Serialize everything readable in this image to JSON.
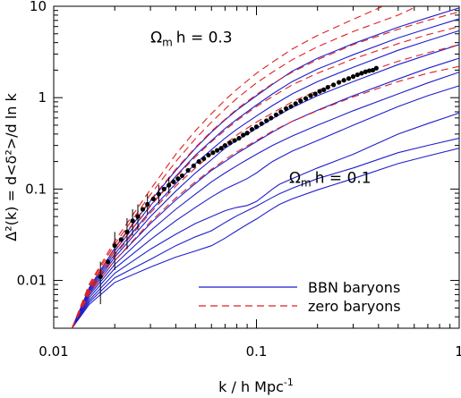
{
  "chart_data": {
    "type": "line",
    "xlabel": "k / h Mpc",
    "xlabel_sup": "-1",
    "ylabel": "Δ²(k) = d<δ²>/d ln k",
    "xscale": "log",
    "yscale": "log",
    "xlim": [
      0.01,
      1
    ],
    "ylim": [
      0.003,
      10
    ],
    "x_ticks": [
      {
        "value": 0.01,
        "label": "0.01"
      },
      {
        "value": 0.1,
        "label": "0.1"
      },
      {
        "value": 1,
        "label": "1"
      }
    ],
    "y_ticks": [
      {
        "value": 0.01,
        "label": "0.01"
      },
      {
        "value": 0.1,
        "label": "0.1"
      },
      {
        "value": 1,
        "label": "1"
      },
      {
        "value": 10,
        "label": "10"
      }
    ],
    "annotations": [
      {
        "text": "Ω",
        "sub": "m",
        "rest": "h = 0.3",
        "x": 0.03,
        "y": 4.0
      },
      {
        "text": "Ω",
        "sub": "m",
        "rest": "h = 0.1",
        "x": 0.145,
        "y": 0.117
      }
    ],
    "legend": {
      "placement": "bottom-right",
      "entries": [
        {
          "label": "BBN baryons",
          "style": "solid",
          "color": "#1f1fcc"
        },
        {
          "label": "zero baryons",
          "style": "dashed",
          "color": "#e02020"
        }
      ]
    },
    "series": [
      {
        "style": "solid",
        "color": "#1f1fcc",
        "x": [
          0.0123,
          0.015,
          0.02,
          0.03,
          0.04,
          0.05,
          0.06,
          0.07,
          0.08,
          0.09,
          0.1,
          0.11,
          0.12,
          0.13,
          0.15,
          0.2,
          0.3,
          0.5,
          0.7,
          1.0
        ],
        "y": [
          0.003,
          0.0055,
          0.0095,
          0.014,
          0.018,
          0.021,
          0.024,
          0.029,
          0.035,
          0.041,
          0.047,
          0.054,
          0.061,
          0.068,
          0.078,
          0.098,
          0.13,
          0.19,
          0.23,
          0.28
        ]
      },
      {
        "style": "solid",
        "color": "#1f1fcc",
        "x": [
          0.0123,
          0.015,
          0.02,
          0.03,
          0.04,
          0.05,
          0.06,
          0.07,
          0.08,
          0.09,
          0.1,
          0.11,
          0.12,
          0.13,
          0.15,
          0.2,
          0.3,
          0.5,
          0.7,
          1.0
        ],
        "y": [
          0.003,
          0.0058,
          0.0107,
          0.017,
          0.024,
          0.03,
          0.035,
          0.043,
          0.051,
          0.058,
          0.065,
          0.073,
          0.081,
          0.089,
          0.102,
          0.13,
          0.17,
          0.25,
          0.3,
          0.36
        ]
      },
      {
        "style": "solid",
        "color": "#1f1fcc",
        "x": [
          0.0123,
          0.015,
          0.02,
          0.03,
          0.04,
          0.05,
          0.06,
          0.07,
          0.08,
          0.09,
          0.1,
          0.11,
          0.12,
          0.13,
          0.15,
          0.2,
          0.3,
          0.5,
          0.7,
          1.0
        ],
        "y": [
          0.003,
          0.0061,
          0.012,
          0.022,
          0.032,
          0.042,
          0.05,
          0.058,
          0.063,
          0.066,
          0.073,
          0.086,
          0.1,
          0.113,
          0.13,
          0.17,
          0.24,
          0.4,
          0.52,
          0.68
        ]
      },
      {
        "style": "solid",
        "color": "#1f1fcc",
        "x": [
          0.0123,
          0.015,
          0.02,
          0.03,
          0.04,
          0.05,
          0.06,
          0.07,
          0.08,
          0.09,
          0.1,
          0.11,
          0.12,
          0.13,
          0.15,
          0.2,
          0.3,
          0.5,
          0.7,
          1.0
        ],
        "y": [
          0.003,
          0.0065,
          0.0135,
          0.028,
          0.045,
          0.063,
          0.082,
          0.1,
          0.115,
          0.13,
          0.15,
          0.175,
          0.2,
          0.22,
          0.26,
          0.34,
          0.5,
          0.8,
          1.05,
          1.35
        ]
      },
      {
        "style": "solid",
        "color": "#1f1fcc",
        "x": [
          0.0123,
          0.015,
          0.02,
          0.03,
          0.04,
          0.05,
          0.06,
          0.07,
          0.08,
          0.09,
          0.1,
          0.12,
          0.15,
          0.2,
          0.3,
          0.5,
          0.7,
          1.0
        ],
        "y": [
          0.003,
          0.0069,
          0.015,
          0.035,
          0.06,
          0.088,
          0.12,
          0.15,
          0.18,
          0.21,
          0.24,
          0.3,
          0.38,
          0.5,
          0.72,
          1.1,
          1.45,
          1.9
        ]
      },
      {
        "style": "solid",
        "color": "#1f1fcc",
        "x": [
          0.0123,
          0.015,
          0.02,
          0.03,
          0.04,
          0.05,
          0.06,
          0.07,
          0.08,
          0.1,
          0.12,
          0.15,
          0.2,
          0.3,
          0.5,
          0.7,
          1.0
        ],
        "y": [
          0.003,
          0.0072,
          0.0165,
          0.042,
          0.076,
          0.115,
          0.16,
          0.2,
          0.245,
          0.33,
          0.42,
          0.55,
          0.73,
          1.05,
          1.6,
          2.1,
          2.7
        ]
      },
      {
        "style": "solid",
        "color": "#1f1fcc",
        "x": [
          0.0123,
          0.015,
          0.02,
          0.03,
          0.04,
          0.05,
          0.06,
          0.07,
          0.08,
          0.1,
          0.12,
          0.15,
          0.2,
          0.3,
          0.5,
          0.7,
          1.0
        ],
        "y": [
          0.003,
          0.0075,
          0.018,
          0.05,
          0.095,
          0.15,
          0.21,
          0.28,
          0.34,
          0.46,
          0.59,
          0.78,
          1.05,
          1.5,
          2.3,
          2.95,
          3.8
        ]
      },
      {
        "style": "solid",
        "color": "#1f1fcc",
        "x": [
          0.0123,
          0.015,
          0.02,
          0.03,
          0.04,
          0.05,
          0.06,
          0.07,
          0.08,
          0.1,
          0.12,
          0.15,
          0.2,
          0.3,
          0.5,
          0.7,
          1.0
        ],
        "y": [
          0.003,
          0.0078,
          0.0195,
          0.058,
          0.115,
          0.19,
          0.27,
          0.36,
          0.45,
          0.63,
          0.82,
          1.1,
          1.5,
          2.15,
          3.3,
          4.2,
          5.4
        ]
      },
      {
        "style": "solid",
        "color": "#1f1fcc",
        "x": [
          0.0123,
          0.015,
          0.02,
          0.03,
          0.04,
          0.05,
          0.06,
          0.07,
          0.08,
          0.1,
          0.12,
          0.15,
          0.2,
          0.3,
          0.5,
          0.7,
          1.0
        ],
        "y": [
          0.003,
          0.0081,
          0.021,
          0.066,
          0.138,
          0.235,
          0.34,
          0.46,
          0.58,
          0.83,
          1.1,
          1.5,
          2.05,
          2.95,
          4.5,
          5.7,
          7.3
        ]
      },
      {
        "style": "solid",
        "color": "#1f1fcc",
        "x": [
          0.0123,
          0.015,
          0.02,
          0.03,
          0.04,
          0.05,
          0.06,
          0.07,
          0.08,
          0.1,
          0.12,
          0.15,
          0.2,
          0.3,
          0.5,
          0.7,
          1.0
        ],
        "y": [
          0.003,
          0.0084,
          0.0225,
          0.074,
          0.16,
          0.28,
          0.42,
          0.57,
          0.73,
          1.05,
          1.4,
          1.95,
          2.7,
          3.9,
          5.9,
          7.5,
          9.6
        ]
      },
      {
        "style": "dashed",
        "color": "#e02020",
        "x": [
          0.0123,
          0.015,
          0.02,
          0.03,
          0.04,
          0.05,
          0.06,
          0.07,
          0.08,
          0.1,
          0.12,
          0.15,
          0.2,
          0.3,
          0.5,
          0.7,
          1.0
        ],
        "y": [
          0.003,
          0.0072,
          0.0165,
          0.044,
          0.08,
          0.12,
          0.165,
          0.21,
          0.255,
          0.34,
          0.43,
          0.55,
          0.72,
          1.02,
          1.5,
          1.85,
          2.2
        ]
      },
      {
        "style": "dashed",
        "color": "#e02020",
        "x": [
          0.0123,
          0.015,
          0.02,
          0.03,
          0.04,
          0.05,
          0.06,
          0.07,
          0.08,
          0.1,
          0.12,
          0.15,
          0.2,
          0.3,
          0.5,
          0.7,
          1.0
        ],
        "y": [
          0.003,
          0.0076,
          0.019,
          0.055,
          0.108,
          0.17,
          0.24,
          0.31,
          0.39,
          0.54,
          0.68,
          0.9,
          1.2,
          1.7,
          2.5,
          3.1,
          3.8
        ]
      },
      {
        "style": "dashed",
        "color": "#e02020",
        "x": [
          0.0123,
          0.015,
          0.02,
          0.03,
          0.04,
          0.05,
          0.06,
          0.07,
          0.08,
          0.1,
          0.12,
          0.15,
          0.2,
          0.3,
          0.5,
          0.7,
          1.0
        ],
        "y": [
          0.003,
          0.008,
          0.021,
          0.065,
          0.135,
          0.225,
          0.33,
          0.44,
          0.56,
          0.8,
          1.03,
          1.38,
          1.85,
          2.65,
          3.9,
          4.9,
          6.0
        ]
      },
      {
        "style": "dashed",
        "color": "#e02020",
        "x": [
          0.0123,
          0.015,
          0.02,
          0.03,
          0.04,
          0.05,
          0.06,
          0.07,
          0.08,
          0.1,
          0.12,
          0.15,
          0.2,
          0.3,
          0.5,
          0.7,
          1.0
        ],
        "y": [
          0.003,
          0.0084,
          0.023,
          0.076,
          0.165,
          0.285,
          0.43,
          0.58,
          0.75,
          1.08,
          1.42,
          1.9,
          2.6,
          3.8,
          5.6,
          7.0,
          8.7
        ]
      },
      {
        "style": "dashed",
        "color": "#e02020",
        "x": [
          0.0123,
          0.015,
          0.02,
          0.03,
          0.04,
          0.05,
          0.06,
          0.07,
          0.08,
          0.1,
          0.12,
          0.15,
          0.2,
          0.3,
          0.5,
          0.62
        ],
        "y": [
          0.003,
          0.0088,
          0.025,
          0.087,
          0.2,
          0.355,
          0.54,
          0.75,
          0.98,
          1.45,
          1.9,
          2.6,
          3.6,
          5.3,
          8.0,
          10.0
        ]
      },
      {
        "style": "dashed",
        "color": "#e02020",
        "x": [
          0.0123,
          0.015,
          0.02,
          0.03,
          0.04,
          0.05,
          0.06,
          0.07,
          0.08,
          0.1,
          0.12,
          0.15,
          0.2,
          0.3,
          0.42
        ],
        "y": [
          0.003,
          0.0092,
          0.027,
          0.099,
          0.24,
          0.435,
          0.67,
          0.94,
          1.23,
          1.85,
          2.45,
          3.4,
          4.8,
          7.2,
          10.0
        ]
      }
    ],
    "data_points": {
      "color": "#000000",
      "x": [
        0.017,
        0.0185,
        0.02,
        0.0215,
        0.023,
        0.0245,
        0.026,
        0.0275,
        0.029,
        0.031,
        0.033,
        0.035,
        0.037,
        0.039,
        0.041,
        0.043,
        0.046,
        0.049,
        0.052,
        0.055,
        0.058,
        0.061,
        0.064,
        0.067,
        0.07,
        0.074,
        0.078,
        0.082,
        0.086,
        0.09,
        0.095,
        0.1,
        0.106,
        0.112,
        0.118,
        0.125,
        0.132,
        0.14,
        0.148,
        0.156,
        0.165,
        0.175,
        0.185,
        0.195,
        0.205,
        0.215,
        0.225,
        0.24,
        0.255,
        0.27,
        0.285,
        0.3,
        0.315,
        0.33,
        0.345,
        0.36,
        0.375,
        0.39
      ],
      "y": [
        0.011,
        0.016,
        0.024,
        0.028,
        0.034,
        0.045,
        0.05,
        0.06,
        0.068,
        0.078,
        0.088,
        0.1,
        0.11,
        0.12,
        0.13,
        0.14,
        0.16,
        0.18,
        0.2,
        0.215,
        0.235,
        0.25,
        0.265,
        0.28,
        0.3,
        0.32,
        0.34,
        0.36,
        0.39,
        0.41,
        0.45,
        0.48,
        0.52,
        0.56,
        0.6,
        0.65,
        0.7,
        0.76,
        0.8,
        0.86,
        0.92,
        0.98,
        1.05,
        1.1,
        1.17,
        1.22,
        1.3,
        1.38,
        1.47,
        1.55,
        1.62,
        1.7,
        1.78,
        1.85,
        1.92,
        1.97,
        2.0,
        2.1
      ],
      "errors": [
        {
          "x": 0.017,
          "ylo": 0.0055,
          "yhi": 0.016
        },
        {
          "x": 0.02,
          "ylo": 0.013,
          "yhi": 0.034
        },
        {
          "x": 0.023,
          "ylo": 0.022,
          "yhi": 0.048
        },
        {
          "x": 0.0245,
          "ylo": 0.031,
          "yhi": 0.06
        },
        {
          "x": 0.026,
          "ylo": 0.036,
          "yhi": 0.068
        },
        {
          "x": 0.029,
          "ylo": 0.052,
          "yhi": 0.088
        },
        {
          "x": 0.033,
          "ylo": 0.07,
          "yhi": 0.11
        },
        {
          "x": 0.037,
          "ylo": 0.09,
          "yhi": 0.134
        }
      ]
    }
  }
}
